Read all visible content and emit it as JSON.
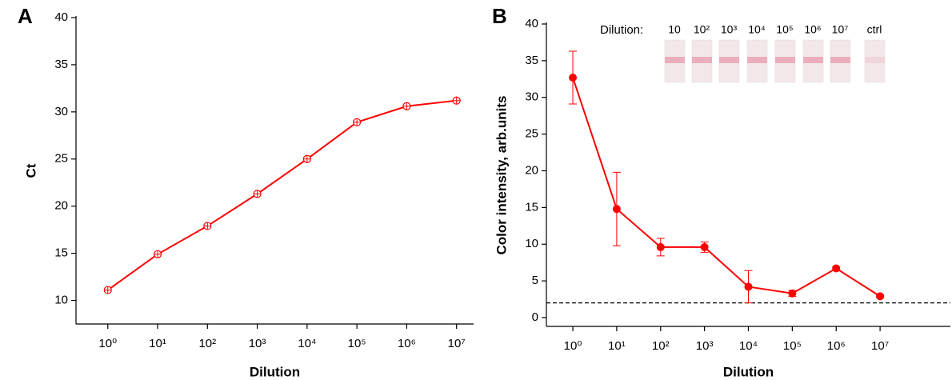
{
  "chart_data": [
    {
      "type": "line",
      "panel_label": "A",
      "x_label": "Dilution",
      "y_label": "Ct",
      "xscale": "log",
      "xlim": [
        0.23,
        22000000
      ],
      "ylim": [
        7.5,
        40
      ],
      "xticks": [
        {
          "value": 1,
          "label": "10⁰"
        },
        {
          "value": 10,
          "label": "10¹"
        },
        {
          "value": 100,
          "label": "10²"
        },
        {
          "value": 1000,
          "label": "10³"
        },
        {
          "value": 10000,
          "label": "10⁴"
        },
        {
          "value": 100000,
          "label": "10⁵"
        },
        {
          "value": 1000000,
          "label": "10⁶"
        },
        {
          "value": 10000000,
          "label": "10⁷"
        }
      ],
      "yticks": [
        10,
        15,
        20,
        25,
        30,
        35,
        40
      ],
      "x": [
        1,
        10,
        100,
        1000,
        10000,
        100000,
        1000000,
        10000000
      ],
      "series": [
        {
          "color": "#ff0000",
          "marker": "open-cross",
          "values": [
            11.1,
            14.9,
            17.9,
            21.3,
            25.0,
            28.9,
            30.6,
            31.2
          ]
        }
      ]
    },
    {
      "type": "line",
      "panel_label": "B",
      "x_label": "Dilution",
      "y_label": "Color intensity, arb.units",
      "xscale": "log",
      "xlim": [
        0.25,
        400000000
      ],
      "ylim": [
        -1.2,
        40
      ],
      "xticks": [
        {
          "value": 1,
          "label": "10⁰"
        },
        {
          "value": 10,
          "label": "10¹"
        },
        {
          "value": 100,
          "label": "10²"
        },
        {
          "value": 1000,
          "label": "10³"
        },
        {
          "value": 10000,
          "label": "10⁴"
        },
        {
          "value": 100000,
          "label": "10⁵"
        },
        {
          "value": 1000000,
          "label": "10⁶"
        },
        {
          "value": 10000000,
          "label": "10⁷"
        }
      ],
      "yticks": [
        0,
        5,
        10,
        15,
        20,
        25,
        30,
        35,
        40
      ],
      "x": [
        1,
        10,
        100,
        1000,
        10000,
        100000,
        1000000,
        10000000
      ],
      "series": [
        {
          "color": "#ff0000",
          "marker": "filled",
          "values": [
            32.7,
            14.8,
            9.6,
            9.6,
            4.2,
            3.3,
            6.7,
            2.9
          ],
          "errors": [
            3.6,
            5.0,
            1.2,
            0.7,
            2.2,
            0.4,
            0.2,
            0.2
          ]
        }
      ],
      "threshold": 2,
      "threshold_color": "#000000",
      "inset": {
        "label": "Dilution:",
        "lanes": [
          "10",
          "10²",
          "10³",
          "10⁴",
          "10⁵",
          "10⁶",
          "10⁷",
          "ctrl"
        ]
      }
    }
  ]
}
